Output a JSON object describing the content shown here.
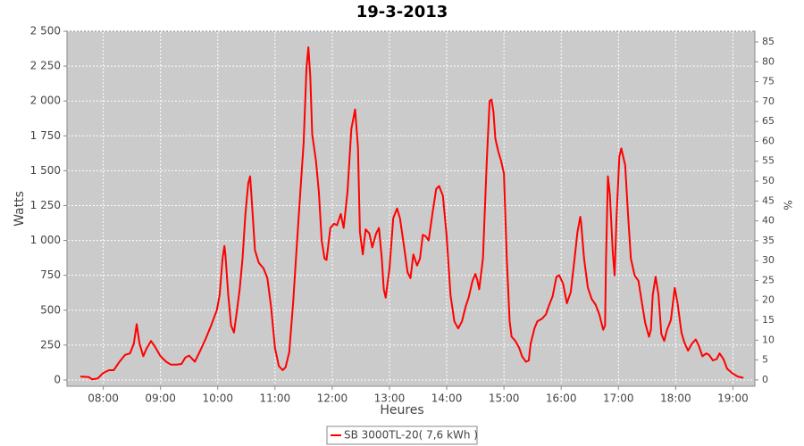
{
  "chart_data": {
    "type": "line",
    "title": "19-3-2013",
    "xlabel": "Heures",
    "ylabel": "Watts",
    "y2label": "%",
    "xlim": [
      "07:22",
      "19:23"
    ],
    "xticks": [
      "08:00",
      "09:00",
      "10:00",
      "11:00",
      "12:00",
      "13:00",
      "14:00",
      "15:00",
      "16:00",
      "17:00",
      "18:00",
      "19:00"
    ],
    "ylim": [
      -45,
      2500
    ],
    "yticks": [
      0,
      250,
      500,
      750,
      {
        "value": 1000,
        "label": "1 000"
      },
      {
        "value": 1250,
        "label": "1 250"
      },
      {
        "value": 1500,
        "label": "1 500"
      },
      {
        "value": 1750,
        "label": "1 750"
      },
      {
        "value": 2000,
        "label": "2 000"
      },
      {
        "value": 2250,
        "label": "2 250"
      },
      {
        "value": 2500,
        "label": "2 500"
      }
    ],
    "y2lim": [
      -1.6,
      87.7
    ],
    "y2ticks": [
      0,
      5,
      10,
      15,
      20,
      25,
      30,
      35,
      40,
      45,
      50,
      55,
      60,
      65,
      70,
      75,
      80,
      85
    ],
    "grid": true,
    "legend": "bottom",
    "x": [
      "07:36",
      "07:45",
      "07:48",
      "07:54",
      "08:00",
      "08:06",
      "08:11",
      "08:17",
      "08:23",
      "08:28",
      "08:32",
      "08:35",
      "08:38",
      "08:42",
      "08:45",
      "08:50",
      "08:54",
      "09:00",
      "09:06",
      "09:11",
      "09:17",
      "09:22",
      "09:26",
      "09:30",
      "09:36",
      "09:41",
      "09:47",
      "09:53",
      "09:59",
      "10:02",
      "10:05",
      "10:07",
      "10:08",
      "10:11",
      "10:14",
      "10:17",
      "10:20",
      "10:23",
      "10:26",
      "10:29",
      "10:32",
      "10:34",
      "10:36",
      "10:39",
      "10:43",
      "10:48",
      "10:52",
      "10:56",
      "11:00",
      "11:04",
      "11:08",
      "11:11",
      "11:15",
      "11:19",
      "11:22",
      "11:26",
      "11:30",
      "11:33",
      "11:35",
      "11:37",
      "11:39",
      "11:43",
      "11:46",
      "11:49",
      "11:52",
      "11:54",
      "11:58",
      "12:02",
      "12:05",
      "12:09",
      "12:12",
      "12:16",
      "12:20",
      "12:24",
      "12:27",
      "12:29",
      "12:32",
      "12:35",
      "12:39",
      "12:42",
      "12:46",
      "12:49",
      "12:52",
      "12:54",
      "12:56",
      "13:00",
      "13:04",
      "13:08",
      "13:11",
      "13:15",
      "13:19",
      "13:22",
      "13:25",
      "13:29",
      "13:32",
      "13:35",
      "13:38",
      "13:41",
      "13:45",
      "13:49",
      "13:52",
      "13:56",
      "14:00",
      "14:04",
      "14:08",
      "14:12",
      "14:16",
      "14:20",
      "14:23",
      "14:27",
      "14:30",
      "14:32",
      "14:34",
      "14:38",
      "14:42",
      "14:45",
      "14:47",
      "14:49",
      "14:51",
      "14:54",
      "14:57",
      "15:00",
      "15:03",
      "15:06",
      "15:08",
      "15:12",
      "15:16",
      "15:19",
      "15:23",
      "15:26",
      "15:28",
      "15:32",
      "15:35",
      "15:40",
      "15:44",
      "15:47",
      "15:51",
      "15:55",
      "15:58",
      "16:02",
      "16:06",
      "16:10",
      "16:14",
      "16:17",
      "16:20",
      "16:21",
      "16:24",
      "16:28",
      "16:32",
      "16:36",
      "16:40",
      "16:44",
      "16:46",
      "16:47",
      "16:49",
      "16:51",
      "16:54",
      "16:56",
      "16:58",
      "17:01",
      "17:03",
      "17:07",
      "17:10",
      "17:13",
      "17:17",
      "17:21",
      "17:24",
      "17:28",
      "17:32",
      "17:34",
      "17:36",
      "17:39",
      "17:42",
      "17:45",
      "17:48",
      "17:51",
      "17:55",
      "17:59",
      "18:02",
      "18:06",
      "18:09",
      "18:13",
      "18:17",
      "18:21",
      "18:24",
      "18:28",
      "18:32",
      "18:35",
      "18:39",
      "18:43",
      "18:46",
      "18:50",
      "18:54",
      "19:00",
      "19:05",
      "19:11"
    ],
    "series": [
      {
        "name": "SB 3000TL-20( 7,6 kWh )",
        "color": "#ff0000",
        "values": [
          25,
          20,
          5,
          10,
          50,
          70,
          70,
          130,
          180,
          190,
          260,
          400,
          260,
          170,
          220,
          280,
          240,
          170,
          130,
          110,
          110,
          115,
          160,
          175,
          130,
          200,
          290,
          390,
          500,
          610,
          870,
          960,
          900,
          610,
          390,
          340,
          490,
          650,
          870,
          1190,
          1410,
          1460,
          1250,
          930,
          840,
          800,
          730,
          520,
          230,
          100,
          70,
          90,
          200,
          550,
          870,
          1290,
          1700,
          2240,
          2385,
          2180,
          1760,
          1570,
          1350,
          1000,
          870,
          860,
          1090,
          1120,
          1110,
          1190,
          1090,
          1350,
          1800,
          1940,
          1670,
          1060,
          900,
          1080,
          1050,
          950,
          1050,
          1090,
          870,
          650,
          590,
          800,
          1160,
          1230,
          1160,
          970,
          770,
          730,
          900,
          820,
          870,
          1040,
          1030,
          1000,
          1190,
          1370,
          1390,
          1320,
          1030,
          610,
          420,
          370,
          420,
          530,
          590,
          710,
          760,
          720,
          650,
          870,
          1570,
          2000,
          2010,
          1920,
          1730,
          1640,
          1570,
          1480,
          870,
          420,
          310,
          280,
          230,
          170,
          130,
          140,
          260,
          370,
          420,
          440,
          470,
          530,
          600,
          740,
          750,
          690,
          550,
          630,
          870,
          1060,
          1170,
          1120,
          870,
          660,
          580,
          540,
          470,
          360,
          390,
          870,
          1460,
          1330,
          920,
          750,
          1160,
          1600,
          1660,
          1540,
          1190,
          870,
          750,
          710,
          580,
          410,
          310,
          360,
          610,
          740,
          610,
          330,
          280,
          360,
          430,
          660,
          550,
          340,
          270,
          210,
          260,
          290,
          250,
          170,
          190,
          180,
          140,
          150,
          190,
          150,
          80,
          45,
          25,
          15
        ]
      }
    ]
  }
}
